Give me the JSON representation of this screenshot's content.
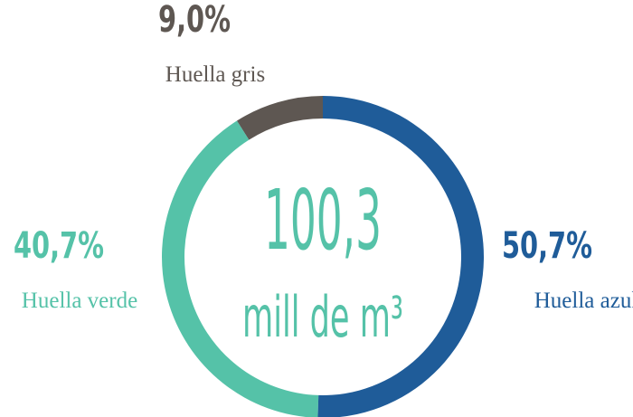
{
  "chart_data": {
    "type": "donut",
    "center_value": "100,3",
    "center_unit": "mill de m³",
    "categories": [
      "Huella azul",
      "Huella verde",
      "Huella gris"
    ],
    "values": [
      50.7,
      40.7,
      9.0
    ],
    "value_labels": [
      "50,7%",
      "40,7%",
      "9,0%"
    ],
    "colors": [
      "#1f5c99",
      "#55c2a8",
      "#5e5752"
    ]
  }
}
